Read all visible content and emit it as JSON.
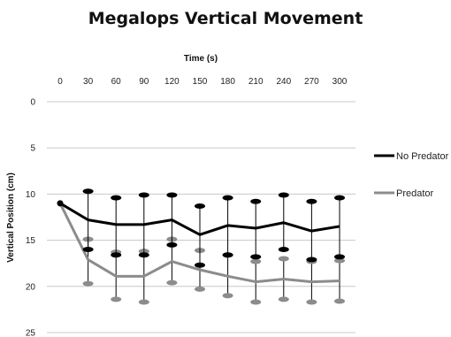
{
  "chart_data": {
    "type": "line",
    "title": "Megalops Vertical Movement",
    "xlabel": "Time (s)",
    "ylabel": "Vertical Position (cm)",
    "x": [
      0,
      30,
      60,
      90,
      120,
      150,
      180,
      210,
      240,
      270,
      300
    ],
    "x_tick_labels": [
      "0",
      "30",
      "60",
      "90",
      "120",
      "150",
      "180",
      "210",
      "240",
      "270",
      "300"
    ],
    "y_tick_labels": [
      "0",
      "5",
      "10",
      "15",
      "20",
      "25"
    ],
    "ylim": [
      0,
      25
    ],
    "y_axis_inverted": true,
    "x_axis_position": "top",
    "grid": "horizontal",
    "legend_position": "right",
    "series": [
      {
        "name": "No Predator",
        "color": "#000000",
        "values": [
          11.0,
          12.8,
          13.3,
          13.3,
          12.8,
          14.4,
          13.4,
          13.7,
          13.1,
          14.0,
          13.5
        ],
        "error_upper": [
          11.0,
          9.7,
          10.4,
          10.1,
          10.1,
          11.3,
          10.4,
          10.8,
          10.1,
          10.8,
          10.4
        ],
        "error_lower": [
          11.0,
          16.0,
          16.6,
          16.6,
          15.5,
          17.7,
          16.6,
          16.8,
          16.0,
          17.1,
          16.8
        ]
      },
      {
        "name": "Predator",
        "color": "#8c8c8c",
        "values": [
          11.0,
          17.1,
          18.9,
          18.9,
          17.3,
          18.2,
          18.9,
          19.5,
          19.2,
          19.5,
          19.4
        ],
        "error_upper": [
          11.0,
          14.9,
          16.3,
          16.2,
          14.9,
          16.1,
          16.6,
          17.3,
          17.0,
          17.3,
          17.2
        ],
        "error_lower": [
          11.0,
          19.7,
          21.4,
          21.7,
          19.6,
          20.3,
          21.0,
          21.7,
          21.4,
          21.7,
          21.6
        ]
      }
    ]
  }
}
